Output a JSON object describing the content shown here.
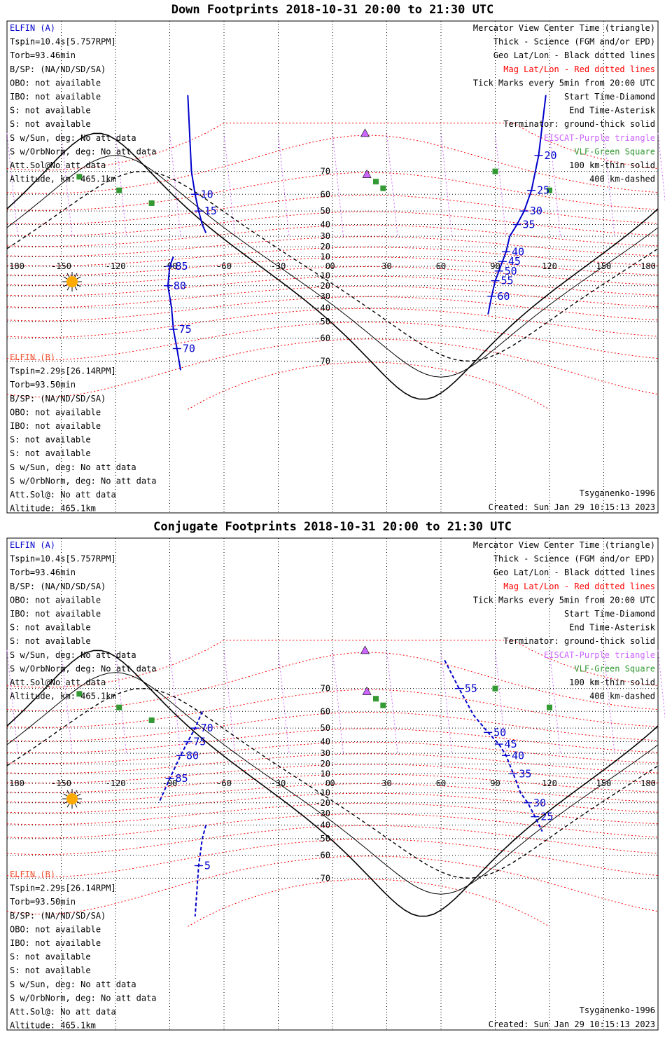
{
  "panels": [
    {
      "title": "Down Footprints 2018-10-31 20:00 to 21:30 UTC",
      "elfin_a": [
        "ELFIN (A)",
        "Tspin=10.4s[5.757RPM]",
        "Torb=93.46min",
        "B/SP: (NA/ND/SD/SA)",
        "OBO: not available",
        "IBO: not available",
        "S: not available",
        "S: not available",
        "S w/Sun, deg: No att data",
        "S w/OrbNorm, deg: No att data",
        "Att.Sol@No att data",
        "Altitude, km: 465.1km"
      ],
      "elfin_b": [
        "ELFIN (B)",
        "Tspin=2.29s[26.14RPM]",
        "Torb=93.50min",
        "B/SP: (NA/ND/SD/SA)",
        "OBO: not available",
        "IBO: not available",
        "S: not available",
        "S: not available",
        "S w/Sun, deg: No att data",
        "S w/OrbNorm, deg: No att data",
        "Att.Sol@: No att data",
        "Altitude: 465.1km"
      ],
      "legend": [
        "Mercator View Center Time (triangle)",
        "Thick - Science (FGM and/or EPD)",
        "Geo Lat/Lon - Black dotted lines",
        "Mag Lat/Lon - Red dotted lines",
        "Tick Marks every 5min from 20:00 UTC",
        "Start Time-Diamond",
        "End Time-Asterisk",
        "Terminator: ground-thick solid",
        "EISCAT-Purple triangle",
        "VLF-Green Square",
        "100 km-thin solid",
        "400 km-dashed"
      ],
      "model": "Tsyganenko-1996",
      "created": "Created: Sun Jan 29 10:15:13 2023",
      "track_a": {
        "lon": [
          -80,
          -78,
          -76,
          -74,
          -72,
          -70
        ],
        "lat": [
          87,
          70,
          60,
          50,
          40,
          33
        ],
        "ticks": [
          "10",
          "15"
        ]
      },
      "track_a2": {
        "lon": [
          118,
          114,
          110,
          106,
          102,
          98,
          96,
          94,
          92,
          90,
          88,
          86
        ],
        "lat": [
          88,
          75,
          62,
          50,
          40,
          30,
          15,
          5,
          -5,
          -15,
          -30,
          -45
        ],
        "ticks": [
          "20",
          "25",
          "30",
          "35",
          "40",
          "45",
          "50",
          "55",
          "60"
        ]
      },
      "track_b": {
        "lon": [
          -88,
          -90,
          -91,
          -89,
          -88,
          -86,
          -84
        ],
        "lat": [
          10,
          0,
          -20,
          -40,
          -55,
          -65,
          -73
        ],
        "ticks": [
          "85",
          "80",
          "75",
          "70"
        ]
      }
    },
    {
      "title": "Conjugate Footprints 2018-10-31 20:00 to 21:30 UTC",
      "elfin_a": [
        "ELFIN (A)",
        "Tspin=10.4s[5.757RPM]",
        "Torb=93.46min",
        "B/SP: (NA/ND/SD/SA)",
        "OBO: not available",
        "IBO: not available",
        "S: not available",
        "S: not available",
        "S w/Sun, deg: No att data",
        "S w/OrbNorm, deg: No att data",
        "Att.Sol@No att data",
        "Altitude, km: 465.1km"
      ],
      "elfin_b": [
        "ELFIN (B)",
        "Tspin=2.29s[26.14RPM]",
        "Torb=93.50min",
        "B/SP: (NA/ND/SD/SA)",
        "OBO: not available",
        "IBO: not available",
        "S: not available",
        "S: not available",
        "S w/Sun, deg: No att data",
        "S w/OrbNorm, deg: No att data",
        "Att.Sol@: No att data",
        "Altitude: 465.1km"
      ],
      "legend": [
        "Mercator View Center Time (triangle)",
        "Thick - Science (FGM and/or EPD)",
        "Geo Lat/Lon - Black dotted lines",
        "Mag Lat/Lon - Red dotted lines",
        "Tick Marks every 5min from 20:00 UTC",
        "Start Time-Diamond",
        "End Time-Asterisk",
        "Terminator: ground-thick solid",
        "EISCAT-Purple triangle",
        "VLF-Green Square",
        "100 km-thin solid",
        "400 km-dashed"
      ],
      "model": "Tsyganenko-1996",
      "created": "Created: Sun Jan 29 10:15:13 2023",
      "track_a2": {
        "lon": [
          62,
          70,
          78,
          86,
          92,
          96,
          100,
          104,
          108,
          112,
          116
        ],
        "lat": [
          78,
          70,
          58,
          47,
          38,
          28,
          10,
          -10,
          -20,
          -33,
          -45
        ],
        "ticks": [
          "55",
          "50",
          "45",
          "40",
          "35",
          "30",
          "25"
        ]
      },
      "track_b": {
        "lon": [
          -72,
          -76,
          -80,
          -84,
          -90,
          -96
        ],
        "lat": [
          60,
          50,
          40,
          28,
          5,
          -20
        ],
        "ticks": [
          "70",
          "75",
          "80",
          "85"
        ]
      },
      "track_c": {
        "lon": [
          -70,
          -72,
          -74,
          -76
        ],
        "lat": [
          -40,
          -50,
          -65,
          -80
        ],
        "ticks": [
          "5"
        ]
      }
    }
  ],
  "axis": {
    "lon_labels": [
      "180",
      "-150",
      "-120",
      "-90",
      "-60",
      "-30",
      "0",
      "30",
      "60",
      "90",
      "120",
      "150",
      "180"
    ],
    "lat_labels": [
      "70",
      "60",
      "50",
      "40",
      "30",
      "20",
      "10",
      "0",
      "-10",
      "-20",
      "-30",
      "-40",
      "-50",
      "-60",
      "-70"
    ]
  },
  "colors": {
    "blue": "#0000cc",
    "red": "#ff0000",
    "orange": "#ee5533",
    "purple": "#cc66ff",
    "green": "#339933",
    "sun": "#ffaa00"
  }
}
